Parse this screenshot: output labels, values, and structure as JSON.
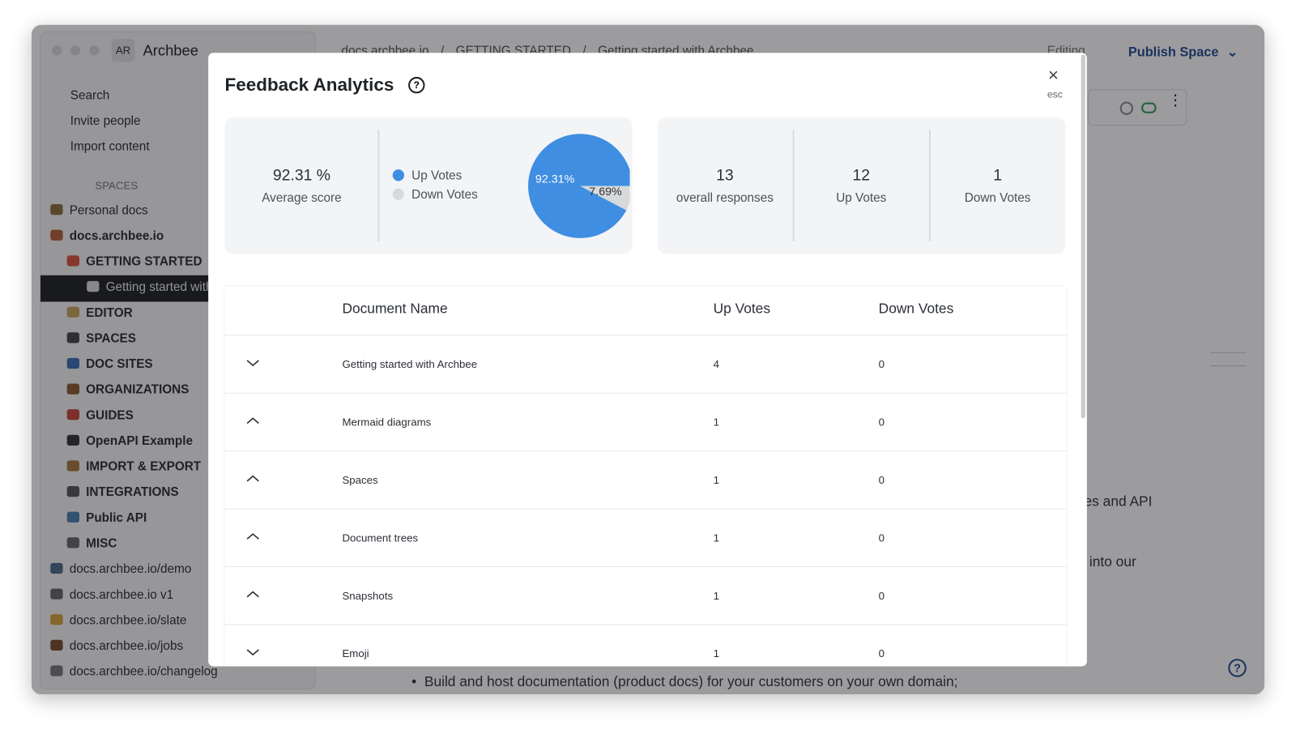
{
  "sidebar": {
    "avatar": "AR",
    "workspace": "Archbee",
    "actions": [
      "Search",
      "Invite people",
      "Import content"
    ],
    "spaces_label": "SPACES",
    "items": [
      "Personal docs",
      "docs.archbee.io",
      "GETTING STARTED",
      "Getting started with Archbee",
      "EDITOR",
      "SPACES",
      "DOC SITES",
      "ORGANIZATIONS",
      "GUIDES",
      "OpenAPI Example",
      "IMPORT & EXPORT",
      "INTEGRATIONS",
      "Public API",
      "MISC",
      "docs.archbee.io/demo",
      "docs.archbee.io v1",
      "docs.archbee.io/slate",
      "docs.archbee.io/jobs",
      "docs.archbee.io/changelog"
    ]
  },
  "topbar": {
    "breadcrumb": [
      "docs.archbee.io",
      "GETTING STARTED",
      "Getting started with Archbee"
    ],
    "editing": "Editing",
    "publish": "Publish Space"
  },
  "content": {
    "fragments": [
      "les and API",
      "into our"
    ],
    "bullet": "Build and host documentation (product docs) for your customers on your own domain;"
  },
  "modal": {
    "title": "Feedback Analytics",
    "close_hint": "esc",
    "average": {
      "value": "92.31 %",
      "label": "Average score"
    },
    "stats": [
      {
        "value": 13,
        "label": "overall responses"
      },
      {
        "value": 12,
        "label": "Up Votes"
      },
      {
        "value": 1,
        "label": "Down Votes"
      }
    ],
    "table": {
      "headers": [
        "Document Name",
        "Up Votes",
        "Down Votes"
      ],
      "rows": [
        [
          "Getting started with Archbee",
          4,
          0
        ],
        [
          "Mermaid diagrams",
          1,
          0
        ],
        [
          "Spaces",
          1,
          0
        ],
        [
          "Document trees",
          1,
          0
        ],
        [
          "Snapshots",
          1,
          0
        ],
        [
          "Emoji",
          1,
          0
        ]
      ]
    }
  },
  "chart_data": {
    "type": "pie",
    "categories": [
      "Up Votes",
      "Down Votes"
    ],
    "values": [
      92.31,
      7.69
    ],
    "value_labels": [
      "92.31%",
      "7.69%"
    ],
    "colors": [
      "#3f8ee2",
      "#d8d9dc"
    ]
  }
}
